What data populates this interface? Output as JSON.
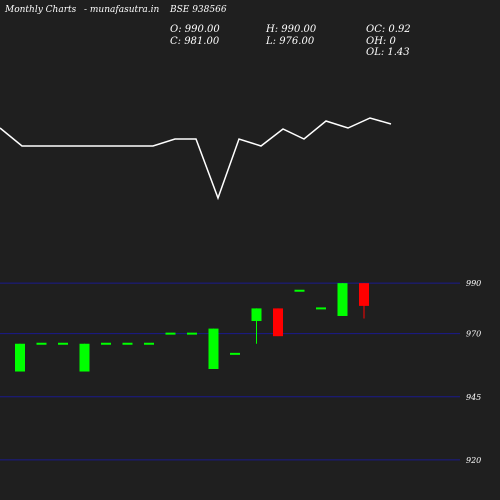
{
  "header": {
    "left": "Monthly Charts",
    "middle": "- munafasutra.in",
    "symbol": "BSE 938566"
  },
  "ohlc": {
    "open": "O: 990.00",
    "close": "C: 981.00",
    "high": "H: 990.00",
    "low": "L: 976.00",
    "oc": "OC: 0.92",
    "oh": "OH: 0",
    "ol": "OL: 1.43"
  },
  "colors": {
    "background": "#1f1f1f",
    "up": "#00ff00",
    "down": "#ff0000",
    "flat": "#00ff00",
    "line": "#ffffff",
    "grid": "#1a1a8c"
  },
  "chart_data": {
    "type": "candlestick",
    "y_ticks": [
      990,
      970,
      945,
      920
    ],
    "y_tick_labels": [
      "990",
      "970",
      "945",
      "920"
    ],
    "ylim": [
      916,
      996
    ],
    "candles": [
      {
        "o": 955,
        "h": 966,
        "l": 955,
        "c": 966
      },
      {
        "o": 966,
        "h": 966,
        "l": 966,
        "c": 966
      },
      {
        "o": 966,
        "h": 966,
        "l": 966,
        "c": 966
      },
      {
        "o": 955,
        "h": 966,
        "l": 955,
        "c": 966
      },
      {
        "o": 966,
        "h": 966,
        "l": 966,
        "c": 966
      },
      {
        "o": 966,
        "h": 966,
        "l": 966,
        "c": 966
      },
      {
        "o": 966,
        "h": 966,
        "l": 966,
        "c": 966
      },
      {
        "o": 970,
        "h": 970,
        "l": 970,
        "c": 970
      },
      {
        "o": 970,
        "h": 970,
        "l": 970,
        "c": 970
      },
      {
        "o": 956,
        "h": 972,
        "l": 956,
        "c": 972
      },
      {
        "o": 962,
        "h": 962,
        "l": 962,
        "c": 962
      },
      {
        "o": 975,
        "h": 980,
        "l": 966,
        "c": 980
      },
      {
        "o": 980,
        "h": 980,
        "l": 969,
        "c": 969
      },
      {
        "o": 987,
        "h": 987,
        "l": 987,
        "c": 987
      },
      {
        "o": 980,
        "h": 980,
        "l": 980,
        "c": 980
      },
      {
        "o": 977,
        "h": 990,
        "l": 977,
        "c": 990
      },
      {
        "o": 990,
        "h": 990,
        "l": 976,
        "c": 981
      }
    ],
    "line_values": [
      128,
      146,
      146,
      146,
      146,
      146,
      146,
      146,
      139,
      139,
      198,
      139,
      146,
      129,
      139,
      121,
      128,
      118,
      124
    ],
    "line_ylim": [
      100,
      210
    ]
  }
}
